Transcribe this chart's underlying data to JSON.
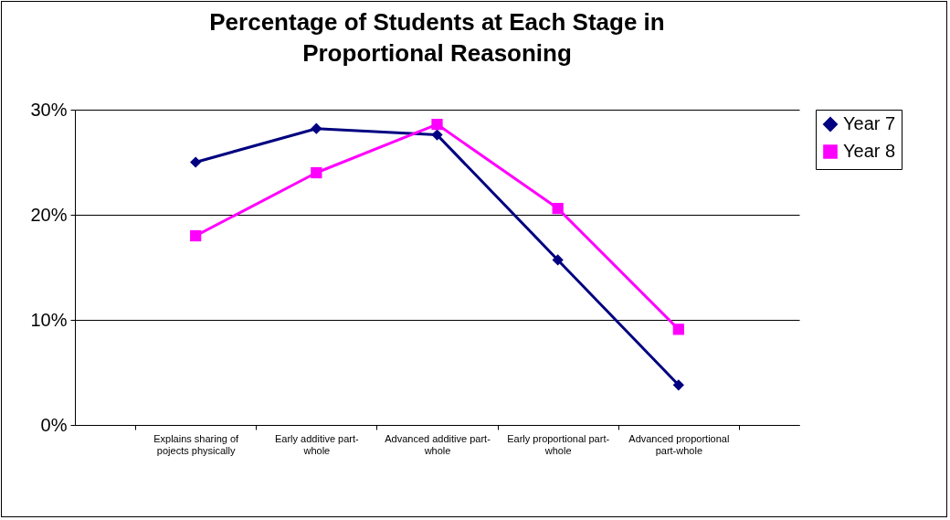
{
  "chart_data": {
    "type": "line",
    "title": "Percentage of Students at Each Stage in Proportional Reasoning",
    "categories": [
      "Explains sharing of pojects physically",
      "Early additive part-whole",
      "Advanced additive part-whole",
      "Early proportional part-whole",
      "Advanced proportional part-whole"
    ],
    "series": [
      {
        "name": "Year 7",
        "color": "#000080",
        "marker": "diamond",
        "values": [
          25.0,
          28.2,
          27.6,
          15.7,
          3.8
        ]
      },
      {
        "name": "Year 8",
        "color": "#ff00ff",
        "marker": "square",
        "values": [
          18.0,
          24.0,
          28.6,
          20.6,
          9.1
        ]
      }
    ],
    "ylim": [
      0,
      30
    ],
    "yticks": [
      {
        "value": 0,
        "label": "0%"
      },
      {
        "value": 10,
        "label": "10%"
      },
      {
        "value": 20,
        "label": "20%"
      },
      {
        "value": 30,
        "label": "30%"
      }
    ],
    "grid": "y",
    "legend": "right"
  }
}
